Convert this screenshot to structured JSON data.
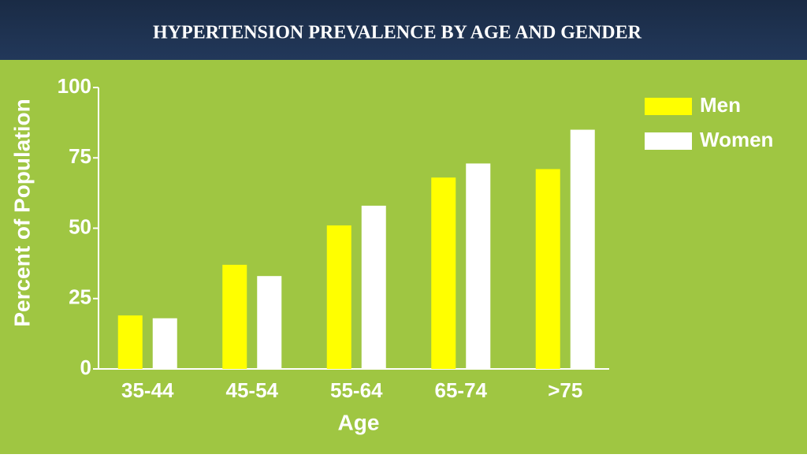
{
  "chart_data": {
    "type": "bar",
    "title": "HYPERTENSION PREVALENCE BY AGE AND GENDER",
    "categories": [
      "35-44",
      "45-54",
      "55-64",
      "65-74",
      ">75"
    ],
    "series": [
      {
        "name": "Men",
        "color": "#ffff00",
        "values": [
          19,
          37,
          51,
          68,
          71
        ]
      },
      {
        "name": "Women",
        "color": "#ffffff",
        "values": [
          18,
          33,
          58,
          73,
          85
        ]
      }
    ],
    "ylim": [
      0,
      100
    ],
    "yticks": [
      0,
      25,
      50,
      75,
      100
    ],
    "x_label": "Age",
    "y_label": "Percent of Population",
    "legend": "top-right"
  }
}
